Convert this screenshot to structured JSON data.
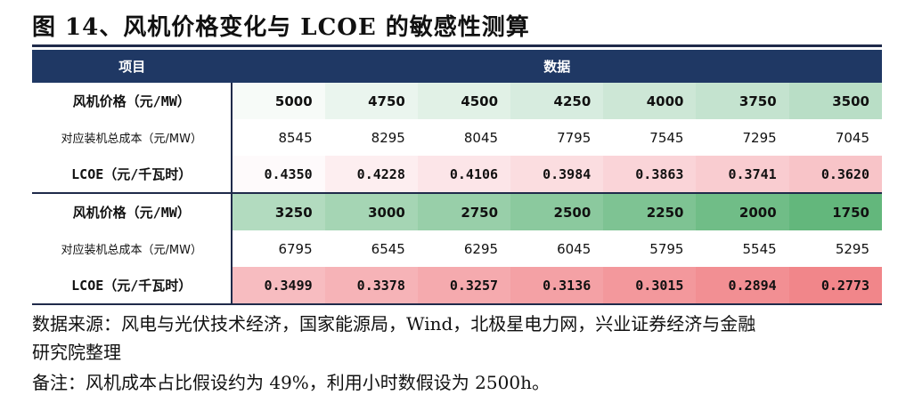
{
  "title": "图 14、风机价格变化与 LCOE 的敏感性测算",
  "header": {
    "item": "项目",
    "data": "数据"
  },
  "rows": [
    {
      "label": "风机价格（元/MW）",
      "style": "bold",
      "values": [
        "5000",
        "4750",
        "4500",
        "4250",
        "4000",
        "3750",
        "3500"
      ],
      "colors": [
        "#f7fbf8",
        "#eaf5ee",
        "#e1f1e6",
        "#d7ecdf",
        "#cde7d6",
        "#c4e3cf",
        "#b9dec6"
      ]
    },
    {
      "label": "对应装机总成本（元/MW）",
      "style": "plain",
      "values": [
        "8545",
        "8295",
        "8045",
        "7795",
        "7545",
        "7295",
        "7045"
      ],
      "colors": [
        "#ffffff",
        "#ffffff",
        "#ffffff",
        "#ffffff",
        "#ffffff",
        "#ffffff",
        "#ffffff"
      ]
    },
    {
      "label": "LCOE（元/千瓦时）",
      "style": "mono",
      "values": [
        "0.4350",
        "0.4228",
        "0.4106",
        "0.3984",
        "0.3863",
        "0.3741",
        "0.3620"
      ],
      "colors": [
        "#fefafb",
        "#fdeef0",
        "#fce5e8",
        "#fbdde0",
        "#fad4d8",
        "#f9ccd0",
        "#f8c4c8"
      ]
    },
    {
      "label": "风机价格（元/MW）",
      "style": "bold",
      "values": [
        "3250",
        "3000",
        "2750",
        "2500",
        "2250",
        "2000",
        "1750"
      ],
      "colors": [
        "#b2dbbf",
        "#a5d5b4",
        "#98cfa9",
        "#8bc99e",
        "#7ec393",
        "#70bd87",
        "#63b77c"
      ]
    },
    {
      "label": "对应装机总成本（元/MW）",
      "style": "plain",
      "values": [
        "6795",
        "6545",
        "6295",
        "6045",
        "5795",
        "5545",
        "5295"
      ],
      "colors": [
        "#ffffff",
        "#ffffff",
        "#ffffff",
        "#ffffff",
        "#ffffff",
        "#ffffff",
        "#ffffff"
      ]
    },
    {
      "label": "LCOE（元/千瓦时）",
      "style": "mono",
      "values": [
        "0.3499",
        "0.3378",
        "0.3257",
        "0.3136",
        "0.3015",
        "0.2894",
        "0.2773"
      ],
      "colors": [
        "#f7bcc0",
        "#f6b3b7",
        "#f5aaae",
        "#f4a1a5",
        "#f3989c",
        "#f28f93",
        "#f1868a"
      ]
    }
  ],
  "source": "数据来源：风电与光伏技术经济，国家能源局，Wind，北极星电力网，兴业证券经济与金融",
  "source_cont": "研究院整理",
  "note": "备注：风机成本占比假设约为 49%，利用小时数假设为 2500h。"
}
